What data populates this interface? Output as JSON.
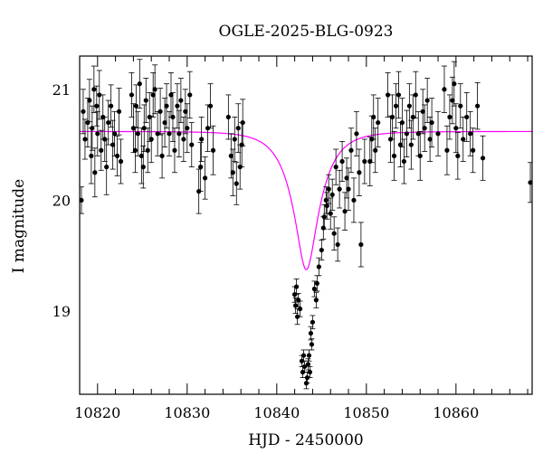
{
  "chart_data": {
    "type": "scatter",
    "title": "OGLE-2025-BLG-0923",
    "xlabel": "HJD - 2450000",
    "ylabel": "I magnitude",
    "xlim": [
      10818,
      10868.5
    ],
    "ylim": [
      21.3,
      18.25
    ],
    "y_inverted": true,
    "grid": false,
    "legend": "none",
    "x_ticks": [
      10820,
      10830,
      10840,
      10850,
      10860
    ],
    "y_ticks": [
      19,
      20,
      21
    ],
    "x_tick_labels": [
      "10820",
      "10830",
      "10840",
      "10850",
      "10860"
    ],
    "y_tick_labels": [
      "19",
      "20",
      "21"
    ],
    "colors": {
      "data": "#000000",
      "model": "#ff00ff"
    },
    "model": {
      "name": "",
      "t0": 10843.3,
      "tE": 3.0,
      "u0": 0.33,
      "baseline_mag": 20.62,
      "source_fraction": 1.0
    },
    "series": [
      {
        "name": "",
        "points": [
          [
            10818.2,
            20.0,
            0.12
          ],
          [
            10818.4,
            20.8,
            0.2
          ],
          [
            10818.6,
            20.55,
            0.18
          ],
          [
            10818.9,
            20.7,
            0.22
          ],
          [
            10819.1,
            20.9,
            0.19
          ],
          [
            10819.3,
            20.4,
            0.25
          ],
          [
            10819.4,
            20.65,
            0.2
          ],
          [
            10819.6,
            21.0,
            0.21
          ],
          [
            10819.7,
            20.25,
            0.22
          ],
          [
            10819.9,
            20.85,
            0.18
          ],
          [
            10820.0,
            20.6,
            0.2
          ],
          [
            10820.2,
            20.95,
            0.22
          ],
          [
            10820.4,
            20.45,
            0.18
          ],
          [
            10820.6,
            20.75,
            0.2
          ],
          [
            10820.8,
            20.55,
            0.2
          ],
          [
            10821.0,
            20.3,
            0.25
          ],
          [
            10821.2,
            20.7,
            0.2
          ],
          [
            10821.5,
            20.85,
            0.19
          ],
          [
            10821.7,
            20.5,
            0.22
          ],
          [
            10821.9,
            20.6,
            0.2
          ],
          [
            10822.2,
            20.4,
            0.18
          ],
          [
            10822.4,
            20.8,
            0.21
          ],
          [
            10822.6,
            20.35,
            0.2
          ],
          [
            10823.8,
            20.95,
            0.2
          ],
          [
            10824.0,
            20.65,
            0.22
          ],
          [
            10824.2,
            20.45,
            0.2
          ],
          [
            10824.3,
            20.85,
            0.19
          ],
          [
            10824.5,
            20.6,
            0.2
          ],
          [
            10824.7,
            21.05,
            0.22
          ],
          [
            10824.9,
            20.4,
            0.25
          ],
          [
            10825.1,
            20.3,
            0.19
          ],
          [
            10825.2,
            20.65,
            0.21
          ],
          [
            10825.4,
            20.9,
            0.2
          ],
          [
            10825.6,
            20.45,
            0.2
          ],
          [
            10825.8,
            20.75,
            0.22
          ],
          [
            10826.0,
            20.55,
            0.21
          ],
          [
            10826.2,
            20.95,
            0.2
          ],
          [
            10826.4,
            21.0,
            0.22
          ],
          [
            10826.7,
            20.6,
            0.2
          ],
          [
            10827.0,
            20.8,
            0.21
          ],
          [
            10827.2,
            20.4,
            0.2
          ],
          [
            10827.5,
            20.7,
            0.22
          ],
          [
            10827.7,
            20.85,
            0.2
          ],
          [
            10828.0,
            20.6,
            0.2
          ],
          [
            10828.2,
            20.95,
            0.2
          ],
          [
            10828.4,
            20.75,
            0.22
          ],
          [
            10828.6,
            20.45,
            0.2
          ],
          [
            10828.9,
            20.85,
            0.2
          ],
          [
            10829.1,
            20.6,
            0.21
          ],
          [
            10829.3,
            20.9,
            0.2
          ],
          [
            10829.6,
            20.55,
            0.2
          ],
          [
            10829.8,
            20.8,
            0.2
          ],
          [
            10830.0,
            20.65,
            0.22
          ],
          [
            10830.3,
            20.95,
            0.21
          ],
          [
            10830.5,
            20.5,
            0.2
          ],
          [
            10831.3,
            20.08,
            0.2
          ],
          [
            10831.5,
            20.3,
            0.22
          ],
          [
            10831.6,
            20.55,
            0.2
          ],
          [
            10832.0,
            20.2,
            0.19
          ],
          [
            10832.3,
            20.65,
            0.21
          ],
          [
            10832.6,
            20.85,
            0.2
          ],
          [
            10832.9,
            20.45,
            0.22
          ],
          [
            10834.6,
            20.75,
            0.2
          ],
          [
            10834.9,
            20.4,
            0.2
          ],
          [
            10835.1,
            20.25,
            0.21
          ],
          [
            10835.3,
            20.55,
            0.2
          ],
          [
            10835.5,
            20.15,
            0.19
          ],
          [
            10835.7,
            20.65,
            0.22
          ],
          [
            10835.9,
            20.3,
            0.2
          ],
          [
            10836.1,
            20.5,
            0.2
          ],
          [
            10836.2,
            20.7,
            0.21
          ],
          [
            10842.0,
            19.15,
            0.07
          ],
          [
            10842.1,
            19.05,
            0.07
          ],
          [
            10842.2,
            19.22,
            0.07
          ],
          [
            10842.3,
            18.95,
            0.07
          ],
          [
            10842.4,
            19.1,
            0.06
          ],
          [
            10842.6,
            19.02,
            0.07
          ],
          [
            10842.8,
            18.55,
            0.05
          ],
          [
            10842.9,
            18.45,
            0.05
          ],
          [
            10843.0,
            18.6,
            0.05
          ],
          [
            10843.1,
            18.5,
            0.05
          ],
          [
            10843.3,
            18.35,
            0.05
          ],
          [
            10843.4,
            18.4,
            0.05
          ],
          [
            10843.5,
            18.52,
            0.05
          ],
          [
            10843.6,
            18.6,
            0.05
          ],
          [
            10843.7,
            18.45,
            0.05
          ],
          [
            10843.8,
            18.8,
            0.06
          ],
          [
            10843.9,
            18.7,
            0.05
          ],
          [
            10844.0,
            18.9,
            0.06
          ],
          [
            10844.2,
            19.2,
            0.07
          ],
          [
            10844.4,
            19.1,
            0.07
          ],
          [
            10844.5,
            19.25,
            0.07
          ],
          [
            10844.7,
            19.4,
            0.08
          ],
          [
            10845.0,
            19.55,
            0.09
          ],
          [
            10845.2,
            19.75,
            0.1
          ],
          [
            10845.3,
            19.85,
            0.11
          ],
          [
            10845.5,
            20.0,
            0.12
          ],
          [
            10845.6,
            19.95,
            0.12
          ],
          [
            10845.8,
            20.1,
            0.13
          ],
          [
            10846.0,
            19.88,
            0.14
          ],
          [
            10846.2,
            20.05,
            0.14
          ],
          [
            10846.4,
            19.7,
            0.15
          ],
          [
            10846.6,
            20.3,
            0.16
          ],
          [
            10846.8,
            19.6,
            0.15
          ],
          [
            10847.0,
            20.1,
            0.17
          ],
          [
            10847.3,
            20.35,
            0.18
          ],
          [
            10847.6,
            19.9,
            0.17
          ],
          [
            10847.8,
            20.2,
            0.18
          ],
          [
            10848.0,
            20.1,
            0.19
          ],
          [
            10848.3,
            20.45,
            0.2
          ],
          [
            10848.6,
            20.0,
            0.2
          ],
          [
            10848.9,
            20.6,
            0.2
          ],
          [
            10849.2,
            20.25,
            0.21
          ],
          [
            10849.4,
            19.6,
            0.2
          ],
          [
            10849.8,
            20.35,
            0.2
          ],
          [
            10850.4,
            20.35,
            0.22
          ],
          [
            10850.6,
            20.55,
            0.21
          ],
          [
            10850.8,
            20.75,
            0.2
          ],
          [
            10851.0,
            20.45,
            0.2
          ],
          [
            10851.3,
            20.7,
            0.22
          ],
          [
            10852.4,
            20.95,
            0.2
          ],
          [
            10852.7,
            20.55,
            0.21
          ],
          [
            10852.9,
            20.75,
            0.2
          ],
          [
            10853.1,
            20.4,
            0.22
          ],
          [
            10853.3,
            20.85,
            0.2
          ],
          [
            10853.6,
            20.95,
            0.21
          ],
          [
            10853.8,
            20.5,
            0.2
          ],
          [
            10854.0,
            20.7,
            0.22
          ],
          [
            10854.2,
            20.35,
            0.2
          ],
          [
            10854.5,
            20.6,
            0.21
          ],
          [
            10854.8,
            20.85,
            0.2
          ],
          [
            10855.0,
            20.5,
            0.22
          ],
          [
            10855.2,
            20.75,
            0.2
          ],
          [
            10855.5,
            20.95,
            0.21
          ],
          [
            10855.8,
            20.6,
            0.2
          ],
          [
            10856.0,
            20.4,
            0.22
          ],
          [
            10856.3,
            20.8,
            0.2
          ],
          [
            10856.5,
            20.65,
            0.21
          ],
          [
            10856.8,
            20.9,
            0.2
          ],
          [
            10857.1,
            20.55,
            0.2
          ],
          [
            10857.3,
            20.7,
            0.22
          ],
          [
            10858.0,
            20.6,
            0.2
          ],
          [
            10858.7,
            21.0,
            0.21
          ],
          [
            10859.0,
            20.45,
            0.22
          ],
          [
            10859.3,
            20.75,
            0.2
          ],
          [
            10859.6,
            20.9,
            0.21
          ],
          [
            10859.8,
            21.05,
            0.2
          ],
          [
            10860.0,
            20.65,
            0.22
          ],
          [
            10860.2,
            20.4,
            0.21
          ],
          [
            10860.5,
            20.85,
            0.2
          ],
          [
            10860.8,
            20.55,
            0.2
          ],
          [
            10861.2,
            20.75,
            0.22
          ],
          [
            10861.6,
            20.6,
            0.2
          ],
          [
            10861.9,
            20.45,
            0.2
          ],
          [
            10862.4,
            20.85,
            0.21
          ],
          [
            10863.0,
            20.38,
            0.2
          ],
          [
            10868.3,
            20.16,
            0.18
          ]
        ]
      }
    ]
  }
}
